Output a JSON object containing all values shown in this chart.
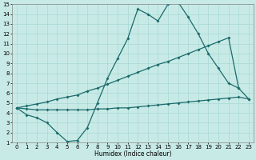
{
  "xlabel": "Humidex (Indice chaleur)",
  "xlim": [
    -0.5,
    23.5
  ],
  "ylim": [
    1,
    15
  ],
  "xticks": [
    0,
    1,
    2,
    3,
    4,
    5,
    6,
    7,
    8,
    9,
    10,
    11,
    12,
    13,
    14,
    15,
    16,
    17,
    18,
    19,
    20,
    21,
    22,
    23
  ],
  "yticks": [
    1,
    2,
    3,
    4,
    5,
    6,
    7,
    8,
    9,
    10,
    11,
    12,
    13,
    14,
    15
  ],
  "background_color": "#c8eae6",
  "grid_color": "#a8d8d4",
  "line_color": "#1a6b6b",
  "line1_x": [
    0,
    1,
    2,
    3,
    4,
    5,
    6,
    7,
    8,
    9,
    10,
    11,
    12,
    13,
    14,
    15,
    16,
    17,
    18,
    19,
    20,
    21,
    22
  ],
  "line1_y": [
    4.5,
    3.8,
    3.5,
    3.0,
    2.0,
    1.1,
    1.2,
    2.5,
    5.0,
    7.5,
    9.5,
    11.5,
    14.5,
    14.0,
    13.3,
    15.0,
    15.2,
    13.7,
    12.0,
    10.0,
    8.5,
    7.0,
    6.5
  ],
  "line2_x": [
    0,
    1,
    2,
    3,
    4,
    5,
    6,
    7,
    8,
    9,
    10,
    11,
    12,
    13,
    14,
    15,
    16,
    17,
    18,
    19,
    20,
    21,
    22,
    23
  ],
  "line2_y": [
    4.5,
    4.7,
    4.9,
    5.1,
    5.4,
    5.6,
    5.8,
    6.2,
    6.5,
    6.9,
    7.3,
    7.7,
    8.1,
    8.5,
    8.9,
    9.2,
    9.6,
    10.0,
    10.4,
    10.8,
    11.2,
    11.6,
    6.5,
    5.4
  ],
  "line3_x": [
    0,
    1,
    2,
    3,
    4,
    5,
    6,
    7,
    8,
    9,
    10,
    11,
    12,
    13,
    14,
    15,
    16,
    17,
    18,
    19,
    20,
    21,
    22,
    23
  ],
  "line3_y": [
    4.5,
    4.4,
    4.3,
    4.3,
    4.3,
    4.3,
    4.3,
    4.3,
    4.4,
    4.4,
    4.5,
    4.5,
    4.6,
    4.7,
    4.8,
    4.9,
    5.0,
    5.1,
    5.2,
    5.3,
    5.4,
    5.5,
    5.6,
    5.4
  ],
  "marker_size": 2.0,
  "line_width": 0.9,
  "tick_fontsize": 5.0
}
